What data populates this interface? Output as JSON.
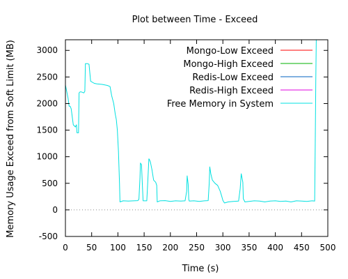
{
  "chart_data": {
    "type": "line",
    "title": "Plot between Time - Exceed",
    "xlabel": "Time (s)",
    "ylabel": "Memory Usage Exceed from Soft Limit (MB)",
    "xlim": [
      0,
      500
    ],
    "ylim": [
      -500,
      3200
    ],
    "xticks": [
      0,
      50,
      100,
      150,
      200,
      250,
      300,
      350,
      400,
      450,
      500
    ],
    "yticks": [
      -500,
      0,
      500,
      1000,
      1500,
      2000,
      2500,
      3000
    ],
    "grid": false,
    "legend_position": "top-right",
    "zero_line": {
      "y": 0,
      "style": "dotted",
      "color": "#888888"
    },
    "series": [
      {
        "name": "Mongo-Low Exceed",
        "color": "#ff0000",
        "points": []
      },
      {
        "name": "Mongo-High Exceed",
        "color": "#00b000",
        "points": []
      },
      {
        "name": "Redis-Low Exceed",
        "color": "#0060c0",
        "points": []
      },
      {
        "name": "Redis-High Exceed",
        "color": "#e000e0",
        "points": []
      },
      {
        "name": "Free Memory in System",
        "color": "#00e0e0",
        "points": [
          [
            0,
            2350
          ],
          [
            3,
            2200
          ],
          [
            5,
            2100
          ],
          [
            7,
            1950
          ],
          [
            9,
            1950
          ],
          [
            11,
            1900
          ],
          [
            13,
            1750
          ],
          [
            15,
            1600
          ],
          [
            17,
            1580
          ],
          [
            19,
            1560
          ],
          [
            21,
            1600
          ],
          [
            22,
            1450
          ],
          [
            25,
            1450
          ],
          [
            26,
            2200
          ],
          [
            28,
            2220
          ],
          [
            30,
            2220
          ],
          [
            35,
            2200
          ],
          [
            37,
            2230
          ],
          [
            38,
            2750
          ],
          [
            42,
            2750
          ],
          [
            45,
            2740
          ],
          [
            48,
            2420
          ],
          [
            55,
            2380
          ],
          [
            60,
            2370
          ],
          [
            70,
            2360
          ],
          [
            80,
            2340
          ],
          [
            85,
            2320
          ],
          [
            88,
            2150
          ],
          [
            92,
            2000
          ],
          [
            95,
            1800
          ],
          [
            97,
            1700
          ],
          [
            99,
            1500
          ],
          [
            101,
            1100
          ],
          [
            103,
            500
          ],
          [
            104,
            150
          ],
          [
            110,
            170
          ],
          [
            120,
            165
          ],
          [
            130,
            170
          ],
          [
            138,
            175
          ],
          [
            140,
            200
          ],
          [
            142,
            600
          ],
          [
            143,
            880
          ],
          [
            145,
            850
          ],
          [
            147,
            400
          ],
          [
            148,
            170
          ],
          [
            155,
            170
          ],
          [
            157,
            550
          ],
          [
            159,
            960
          ],
          [
            160,
            950
          ],
          [
            162,
            900
          ],
          [
            165,
            750
          ],
          [
            168,
            560
          ],
          [
            172,
            520
          ],
          [
            174,
            460
          ],
          [
            175,
            150
          ],
          [
            180,
            170
          ],
          [
            190,
            175
          ],
          [
            200,
            160
          ],
          [
            210,
            170
          ],
          [
            220,
            165
          ],
          [
            228,
            170
          ],
          [
            231,
            350
          ],
          [
            232,
            640
          ],
          [
            234,
            480
          ],
          [
            235,
            200
          ],
          [
            236,
            165
          ],
          [
            245,
            170
          ],
          [
            255,
            160
          ],
          [
            265,
            170
          ],
          [
            272,
            175
          ],
          [
            274,
            500
          ],
          [
            275,
            810
          ],
          [
            277,
            680
          ],
          [
            280,
            560
          ],
          [
            285,
            500
          ],
          [
            290,
            460
          ],
          [
            295,
            350
          ],
          [
            298,
            250
          ],
          [
            300,
            180
          ],
          [
            303,
            130
          ],
          [
            310,
            150
          ],
          [
            320,
            160
          ],
          [
            330,
            165
          ],
          [
            333,
            400
          ],
          [
            335,
            680
          ],
          [
            338,
            520
          ],
          [
            339,
            210
          ],
          [
            342,
            150
          ],
          [
            350,
            160
          ],
          [
            360,
            170
          ],
          [
            370,
            165
          ],
          [
            380,
            150
          ],
          [
            390,
            165
          ],
          [
            400,
            170
          ],
          [
            410,
            160
          ],
          [
            420,
            165
          ],
          [
            430,
            150
          ],
          [
            440,
            170
          ],
          [
            450,
            165
          ],
          [
            460,
            160
          ],
          [
            470,
            170
          ],
          [
            475,
            165
          ],
          [
            476,
            1200
          ],
          [
            477,
            2400
          ],
          [
            478,
            3200
          ]
        ]
      }
    ]
  }
}
